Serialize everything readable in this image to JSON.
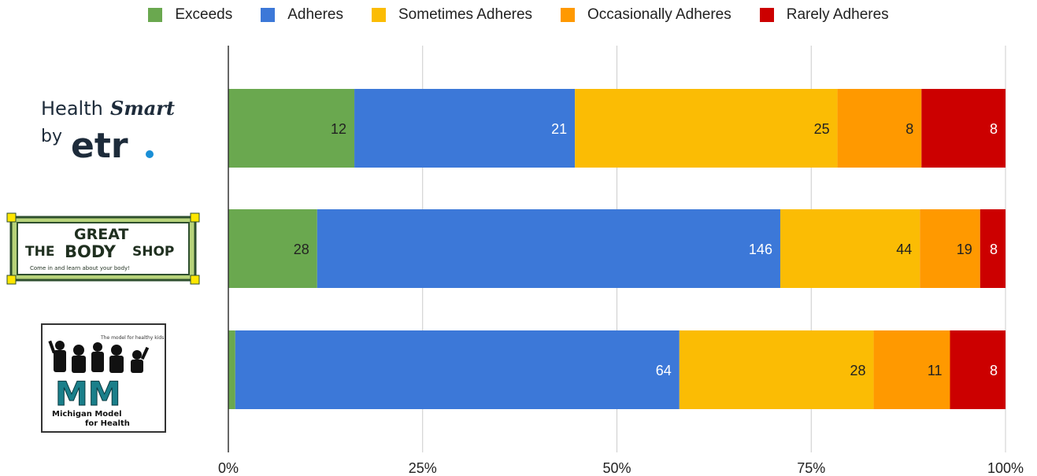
{
  "chart_data": {
    "type": "bar",
    "orientation": "horizontal",
    "stacked": "percent",
    "categories": [
      "HealthSmart by etr.",
      "The Great Body Shop",
      "Michigan Model for Health"
    ],
    "series": [
      {
        "name": "Exceeds",
        "color": "#6aa84f",
        "values": [
          12,
          28,
          1
        ]
      },
      {
        "name": "Adheres",
        "color": "#3c78d8",
        "values": [
          21,
          146,
          64
        ]
      },
      {
        "name": "Sometimes Adheres",
        "color": "#fbbc04",
        "values": [
          25,
          44,
          28
        ]
      },
      {
        "name": "Occasionally Adheres",
        "color": "#ff9900",
        "values": [
          8,
          19,
          11
        ]
      },
      {
        "name": "Rarely Adheres",
        "color": "#cc0000",
        "values": [
          8,
          8,
          8
        ]
      }
    ],
    "x_ticks": [
      "0%",
      "25%",
      "50%",
      "75%",
      "100%"
    ],
    "xlim": [
      0,
      100
    ],
    "grid": true,
    "legend": "top-center",
    "label_colors": {
      "dark": "#222222",
      "light": "#ffffff"
    }
  },
  "logos": {
    "healthsmart": {
      "line1": "Health",
      "line1_script": "Smart",
      "line2": "by",
      "brand": "etr",
      "dot": "."
    },
    "greatbodyshop": {
      "the": "THE",
      "great": "GREAT",
      "body": "BODY",
      "shop": "SHOP",
      "tagline": "Come in and learn about your body!"
    },
    "mmh": {
      "tagline": "The model for healthy kids!",
      "mark": "MM",
      "name1": "Michigan Model",
      "name2": "for Health"
    }
  }
}
